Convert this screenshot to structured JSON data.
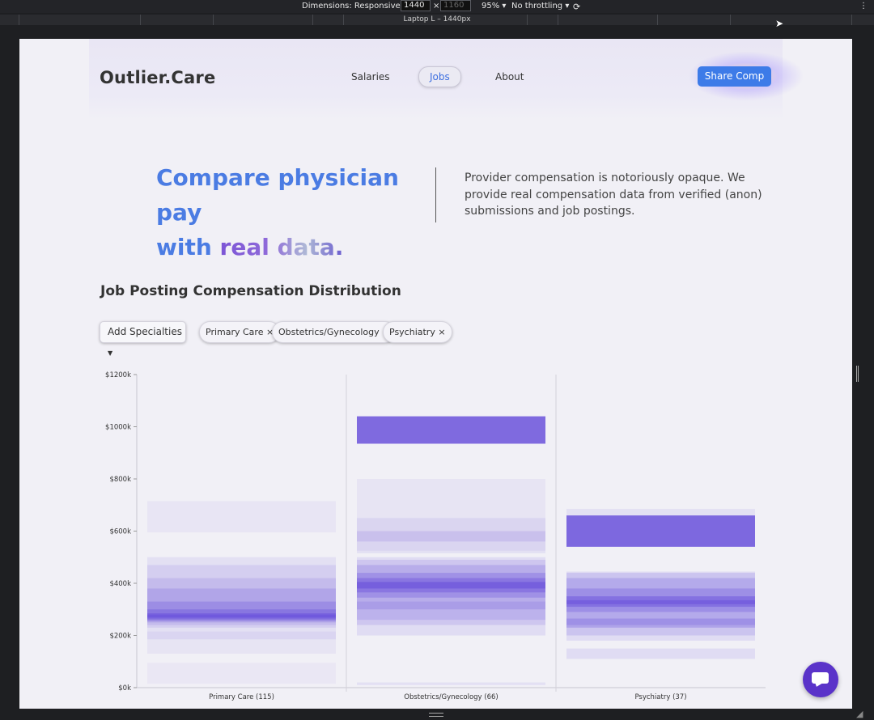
{
  "devtools": {
    "dimensions_label": "Dimensions: Responsive",
    "width_value": "1440",
    "times": "×",
    "height_placeholder": "1160",
    "zoom": "95%",
    "throttling": "No throttling",
    "breakpoint_label": "Laptop L – 1440px"
  },
  "header": {
    "logo": "Outlier.Care",
    "nav": [
      "Salaries",
      "Jobs",
      "About"
    ],
    "active_nav": "Jobs",
    "cta": "Share Comp"
  },
  "hero": {
    "title_line1": "Compare physician pay",
    "title_line2_plain": "with ",
    "title_line2_highlight": "real data.",
    "description": "Provider compensation is notoriously opaque. We provide real compensation data from verified (anon) submissions and job postings."
  },
  "section": {
    "title": "Job Posting Compensation Distribution",
    "add_specialties": "Add Specialties",
    "chips": [
      "Primary Care ×",
      "Obstetrics/Gynecology ×",
      "Psychiatry ×"
    ]
  },
  "colors": {
    "accent_blue": "#3d7be8",
    "title_blue": "#4b7ce3",
    "band_purple": "#6e56dc",
    "chat_purple": "#5a33c9"
  },
  "chart_data": {
    "type": "heatmap",
    "title": "",
    "xlabel": "",
    "ylabel": "",
    "ylim": [
      0,
      1200
    ],
    "yticks": [
      "$0k",
      "$200k",
      "$400k",
      "$600k",
      "$800k",
      "$1000k",
      "$1200k"
    ],
    "categories": [
      "Primary Care (115)",
      "Obstetrics/Gynecology (66)",
      "Psychiatry (37)"
    ],
    "series": [
      {
        "name": "Primary Care (115)",
        "bands": [
          [
            595,
            715,
            0.07
          ],
          [
            185,
            500,
            0.1
          ],
          [
            230,
            470,
            0.12
          ],
          [
            240,
            420,
            0.16
          ],
          [
            250,
            380,
            0.22
          ],
          [
            255,
            330,
            0.3
          ],
          [
            260,
            300,
            0.42
          ],
          [
            265,
            285,
            0.6
          ],
          [
            270,
            280,
            0.75
          ],
          [
            130,
            215,
            0.08
          ],
          [
            15,
            95,
            0.05
          ]
        ]
      },
      {
        "name": "Obstetrics/Gynecology (66)",
        "bands": [
          [
            935,
            1040,
            0.88
          ],
          [
            525,
            800,
            0.08
          ],
          [
            515,
            650,
            0.1
          ],
          [
            560,
            600,
            0.16
          ],
          [
            200,
            500,
            0.12
          ],
          [
            240,
            490,
            0.16
          ],
          [
            300,
            470,
            0.22
          ],
          [
            345,
            440,
            0.32
          ],
          [
            365,
            420,
            0.45
          ],
          [
            380,
            405,
            0.7
          ],
          [
            260,
            330,
            0.18
          ],
          [
            10,
            20,
            0.1
          ]
        ]
      },
      {
        "name": "Psychiatry (37)",
        "bands": [
          [
            540,
            685,
            0.1
          ],
          [
            540,
            660,
            0.88
          ],
          [
            110,
            150,
            0.12
          ],
          [
            180,
            445,
            0.12
          ],
          [
            200,
            440,
            0.18
          ],
          [
            240,
            420,
            0.24
          ],
          [
            290,
            380,
            0.32
          ],
          [
            310,
            350,
            0.52
          ],
          [
            320,
            335,
            0.65
          ],
          [
            230,
            265,
            0.3
          ]
        ]
      }
    ]
  }
}
